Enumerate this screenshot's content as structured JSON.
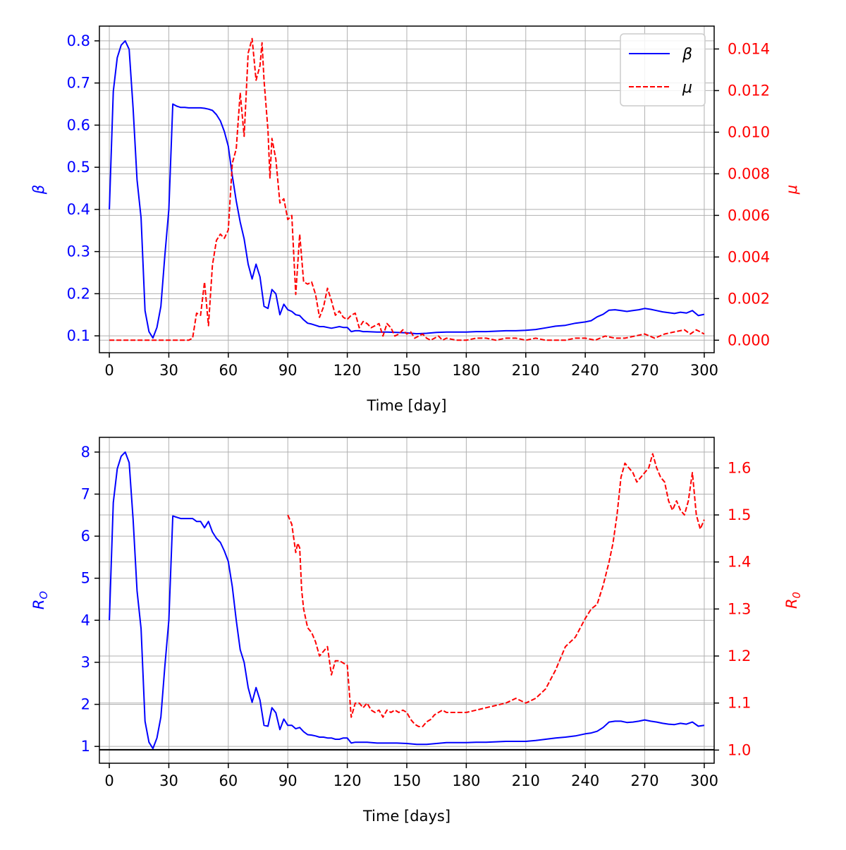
{
  "colors": {
    "primary": "#0000ff",
    "secondary": "#ff0000",
    "axis": "#000000",
    "grid": "#b0b0b0",
    "reference": "#000000"
  },
  "chart_data": [
    {
      "type": "line",
      "title": "",
      "xlabel": "Time [day]",
      "ylabel_left": "β",
      "ylabel_right": "μ",
      "xlim": [
        -5,
        305
      ],
      "ylim_left": [
        0.06,
        0.835
      ],
      "ylim_right": [
        -0.0006,
        0.0151
      ],
      "xticks": [
        0,
        30,
        60,
        90,
        120,
        150,
        180,
        210,
        240,
        270,
        300
      ],
      "yticks_left": [
        "0.1",
        "0.2",
        "0.3",
        "0.4",
        "0.5",
        "0.6",
        "0.7",
        "0.8"
      ],
      "yticks_right": [
        "0.000",
        "0.002",
        "0.004",
        "0.006",
        "0.008",
        "0.010",
        "0.012",
        "0.014"
      ],
      "grid": true,
      "legend": {
        "placement": "top-right",
        "entries": [
          "β",
          "μ"
        ]
      },
      "series": [
        {
          "name": "β",
          "axis": "left",
          "style": "solid",
          "color": "#0000ff",
          "x": [
            0,
            2,
            4,
            6,
            8,
            10,
            12,
            14,
            16,
            18,
            20,
            22,
            24,
            26,
            28,
            30,
            32,
            34,
            36,
            38,
            40,
            42,
            44,
            46,
            48,
            50,
            52,
            54,
            56,
            58,
            60,
            62,
            64,
            66,
            68,
            70,
            72,
            74,
            76,
            78,
            80,
            82,
            84,
            86,
            88,
            90,
            92,
            94,
            96,
            98,
            100,
            102,
            104,
            106,
            108,
            110,
            112,
            114,
            116,
            118,
            120,
            122,
            124,
            126,
            128,
            130,
            135,
            140,
            145,
            150,
            155,
            160,
            165,
            170,
            175,
            180,
            185,
            190,
            195,
            200,
            205,
            210,
            215,
            220,
            225,
            230,
            235,
            240,
            243,
            246,
            249,
            252,
            255,
            258,
            261,
            264,
            267,
            270,
            273,
            276,
            279,
            282,
            285,
            288,
            291,
            294,
            297,
            300
          ],
          "y": [
            0.4,
            0.68,
            0.76,
            0.79,
            0.8,
            0.78,
            0.64,
            0.47,
            0.38,
            0.16,
            0.11,
            0.095,
            0.12,
            0.17,
            0.29,
            0.4,
            0.65,
            0.645,
            0.642,
            0.642,
            0.641,
            0.641,
            0.641,
            0.641,
            0.64,
            0.638,
            0.635,
            0.625,
            0.61,
            0.585,
            0.55,
            0.48,
            0.42,
            0.37,
            0.33,
            0.27,
            0.235,
            0.27,
            0.24,
            0.17,
            0.165,
            0.21,
            0.2,
            0.15,
            0.175,
            0.162,
            0.158,
            0.15,
            0.148,
            0.138,
            0.13,
            0.128,
            0.125,
            0.122,
            0.122,
            0.12,
            0.118,
            0.12,
            0.122,
            0.12,
            0.12,
            0.11,
            0.112,
            0.112,
            0.11,
            0.11,
            0.109,
            0.109,
            0.108,
            0.107,
            0.105,
            0.106,
            0.108,
            0.109,
            0.109,
            0.109,
            0.11,
            0.11,
            0.111,
            0.112,
            0.112,
            0.113,
            0.115,
            0.119,
            0.123,
            0.125,
            0.13,
            0.133,
            0.136,
            0.145,
            0.151,
            0.161,
            0.162,
            0.16,
            0.158,
            0.16,
            0.162,
            0.165,
            0.163,
            0.16,
            0.157,
            0.155,
            0.153,
            0.156,
            0.154,
            0.16,
            0.148,
            0.151
          ]
        },
        {
          "name": "μ",
          "axis": "right",
          "style": "dashed",
          "color": "#ff0000",
          "x": [
            0,
            5,
            10,
            15,
            20,
            25,
            30,
            35,
            40,
            42,
            44,
            46,
            48,
            50,
            52,
            54,
            56,
            58,
            60,
            62,
            64,
            66,
            68,
            70,
            72,
            74,
            76,
            77,
            78,
            80,
            81,
            82,
            84,
            86,
            88,
            90,
            92,
            94,
            96,
            98,
            100,
            102,
            104,
            106,
            108,
            110,
            112,
            114,
            116,
            118,
            120,
            122,
            124,
            126,
            128,
            130,
            132,
            134,
            136,
            138,
            140,
            142,
            144,
            146,
            148,
            150,
            152,
            154,
            156,
            158,
            160,
            162,
            164,
            166,
            168,
            170,
            175,
            180,
            185,
            190,
            195,
            200,
            205,
            210,
            215,
            220,
            225,
            230,
            235,
            240,
            245,
            250,
            255,
            260,
            265,
            270,
            275,
            280,
            285,
            290,
            293,
            296,
            300
          ],
          "y": [
            0,
            0,
            0,
            0,
            0,
            0,
            0,
            0,
            0,
            0.0001,
            0.0013,
            0.0012,
            0.0028,
            0.0007,
            0.0036,
            0.0048,
            0.0051,
            0.0049,
            0.0053,
            0.0085,
            0.0092,
            0.0119,
            0.0098,
            0.0138,
            0.0145,
            0.0125,
            0.0132,
            0.0143,
            0.0125,
            0.0101,
            0.0078,
            0.0097,
            0.0087,
            0.0066,
            0.0068,
            0.0058,
            0.006,
            0.0022,
            0.0051,
            0.0028,
            0.0027,
            0.0028,
            0.0022,
            0.0011,
            0.0016,
            0.0025,
            0.0019,
            0.0012,
            0.0014,
            0.0011,
            0.001,
            0.0012,
            0.0013,
            0.0006,
            0.0009,
            0.0008,
            0.0006,
            0.0007,
            0.0008,
            0.0002,
            0.0008,
            0.0006,
            0.0002,
            0.0003,
            0.0005,
            0.0003,
            0.0004,
            0.0001,
            0.0002,
            0.0003,
            0.0001,
            0,
            0.0001,
            0.0002,
            0,
            0.0001,
            0,
            0,
            0.0001,
            0.0001,
            0,
            0.0001,
            0.0001,
            0,
            0.0001,
            0,
            0,
            0,
            0.0001,
            0.0001,
            0,
            0.0002,
            0.0001,
            0.0001,
            0.0002,
            0.0003,
            0.0001,
            0.0003,
            0.0004,
            0.0005,
            0.0003,
            0.0005,
            0.0003
          ]
        }
      ]
    },
    {
      "type": "line",
      "title": "",
      "xlabel": "Time [days]",
      "ylabel_left": "R_O",
      "ylabel_right": "R_0",
      "xlim": [
        -5,
        305
      ],
      "ylim_left": [
        0.6,
        8.35
      ],
      "ylim_right": [
        0.972,
        1.665
      ],
      "xticks": [
        0,
        30,
        60,
        90,
        120,
        150,
        180,
        210,
        240,
        270,
        300
      ],
      "yticks_left": [
        "1",
        "2",
        "3",
        "4",
        "5",
        "6",
        "7",
        "8"
      ],
      "yticks_right": [
        "1.0",
        "1.1",
        "1.2",
        "1.3",
        "1.4",
        "1.5",
        "1.6"
      ],
      "grid": true,
      "legend": null,
      "reference_line": {
        "axis": "left",
        "y": 0.92
      },
      "series": [
        {
          "name": "",
          "axis": "left",
          "style": "solid",
          "color": "#0000ff",
          "x": [
            0,
            2,
            4,
            6,
            8,
            10,
            12,
            14,
            16,
            18,
            20,
            22,
            24,
            26,
            28,
            30,
            32,
            34,
            36,
            38,
            40,
            42,
            44,
            46,
            48,
            50,
            52,
            54,
            56,
            58,
            60,
            62,
            64,
            66,
            68,
            70,
            72,
            74,
            76,
            78,
            80,
            82,
            84,
            86,
            88,
            90,
            92,
            94,
            96,
            98,
            100,
            102,
            104,
            106,
            108,
            110,
            112,
            114,
            116,
            118,
            120,
            122,
            124,
            126,
            128,
            130,
            135,
            140,
            145,
            150,
            155,
            160,
            165,
            170,
            175,
            180,
            185,
            190,
            195,
            200,
            205,
            210,
            215,
            220,
            225,
            230,
            235,
            240,
            243,
            246,
            249,
            252,
            255,
            258,
            261,
            264,
            267,
            270,
            273,
            276,
            279,
            282,
            285,
            288,
            291,
            294,
            297,
            300
          ],
          "y": [
            4.0,
            6.8,
            7.6,
            7.9,
            8.0,
            7.75,
            6.4,
            4.7,
            3.8,
            1.6,
            1.1,
            0.95,
            1.2,
            1.7,
            2.9,
            4.0,
            6.48,
            6.45,
            6.42,
            6.42,
            6.42,
            6.42,
            6.35,
            6.35,
            6.2,
            6.35,
            6.1,
            5.95,
            5.85,
            5.65,
            5.4,
            4.8,
            4.0,
            3.3,
            3.0,
            2.4,
            2.05,
            2.4,
            2.1,
            1.5,
            1.48,
            1.92,
            1.8,
            1.4,
            1.65,
            1.5,
            1.5,
            1.42,
            1.45,
            1.35,
            1.28,
            1.27,
            1.25,
            1.22,
            1.22,
            1.2,
            1.2,
            1.17,
            1.17,
            1.2,
            1.2,
            1.08,
            1.1,
            1.1,
            1.1,
            1.1,
            1.08,
            1.08,
            1.08,
            1.07,
            1.05,
            1.05,
            1.07,
            1.09,
            1.09,
            1.09,
            1.1,
            1.1,
            1.11,
            1.12,
            1.12,
            1.12,
            1.14,
            1.17,
            1.2,
            1.22,
            1.25,
            1.3,
            1.32,
            1.36,
            1.45,
            1.58,
            1.6,
            1.6,
            1.57,
            1.58,
            1.6,
            1.63,
            1.6,
            1.58,
            1.55,
            1.53,
            1.52,
            1.55,
            1.53,
            1.58,
            1.48,
            1.5
          ]
        },
        {
          "name": "",
          "axis": "right",
          "style": "dashed",
          "color": "#ff0000",
          "x": [
            90,
            92,
            94,
            95,
            96,
            97,
            98,
            99,
            100,
            102,
            104,
            106,
            108,
            110,
            112,
            114,
            116,
            118,
            120,
            122,
            124,
            126,
            128,
            130,
            132,
            134,
            136,
            138,
            140,
            142,
            144,
            146,
            148,
            150,
            152,
            154,
            156,
            158,
            160,
            162,
            164,
            166,
            168,
            170,
            175,
            180,
            185,
            190,
            195,
            200,
            205,
            210,
            215,
            220,
            225,
            230,
            235,
            240,
            243,
            246,
            249,
            252,
            254,
            256,
            258,
            260,
            262,
            264,
            266,
            268,
            270,
            272,
            274,
            276,
            278,
            280,
            282,
            284,
            286,
            288,
            290,
            292,
            294,
            296,
            298,
            300
          ],
          "y": [
            1.5,
            1.48,
            1.42,
            1.44,
            1.43,
            1.34,
            1.3,
            1.28,
            1.26,
            1.25,
            1.23,
            1.2,
            1.21,
            1.22,
            1.16,
            1.19,
            1.19,
            1.185,
            1.18,
            1.07,
            1.1,
            1.1,
            1.09,
            1.1,
            1.085,
            1.08,
            1.085,
            1.07,
            1.085,
            1.08,
            1.085,
            1.08,
            1.085,
            1.08,
            1.065,
            1.055,
            1.05,
            1.05,
            1.06,
            1.065,
            1.075,
            1.08,
            1.085,
            1.08,
            1.08,
            1.08,
            1.085,
            1.09,
            1.095,
            1.1,
            1.11,
            1.1,
            1.11,
            1.13,
            1.17,
            1.22,
            1.24,
            1.28,
            1.3,
            1.31,
            1.35,
            1.4,
            1.44,
            1.5,
            1.58,
            1.61,
            1.6,
            1.59,
            1.57,
            1.58,
            1.59,
            1.6,
            1.63,
            1.6,
            1.58,
            1.57,
            1.53,
            1.51,
            1.53,
            1.51,
            1.5,
            1.53,
            1.59,
            1.5,
            1.47,
            1.49
          ]
        }
      ]
    }
  ]
}
